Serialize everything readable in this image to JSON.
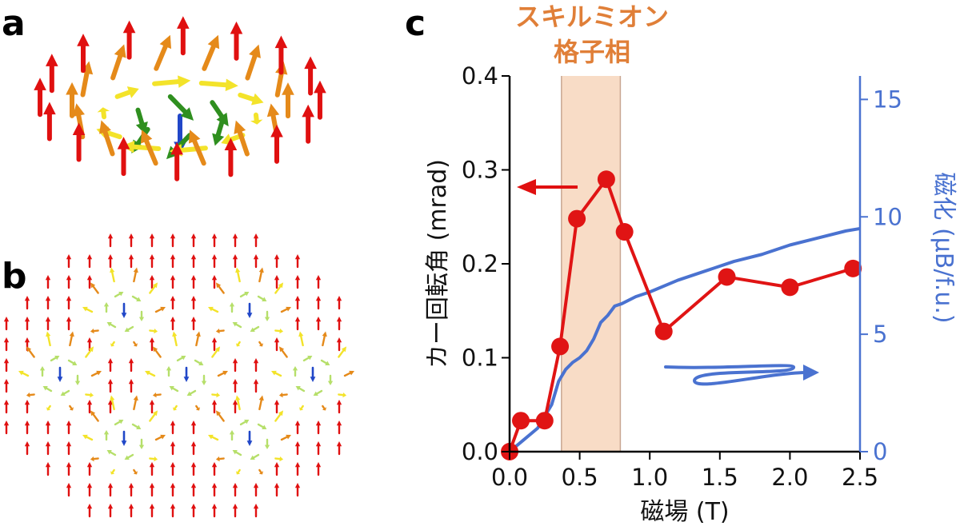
{
  "panels": {
    "a": {
      "label": "a"
    },
    "b": {
      "label": "b"
    },
    "c": {
      "label": "c"
    }
  },
  "phase_annotation": {
    "line1": "スキルミオン",
    "line2": "格子相",
    "range": [
      0.37,
      0.79
    ],
    "fill_color": "#f8dcc6"
  },
  "colors": {
    "kerr": "#e01414",
    "magnetization": "#4a72d0",
    "arrow_red": "#e01010",
    "arrow_orange": "#e58a1a",
    "arrow_yellow": "#f3e32a",
    "arrow_green": "#2f8f1f",
    "arrow_lightgreen": "#b6df6a",
    "arrow_blue": "#2147c8"
  },
  "chart_data": {
    "type": "line",
    "xlabel": "磁場 (T)",
    "ylabel_left": "カー回転角 (mrad)",
    "ylabel_right": "磁化 (μB/f.u.)",
    "xlim": [
      0,
      2.5
    ],
    "ylim_left": [
      0,
      0.4
    ],
    "ylim_right": [
      0,
      16
    ],
    "x_ticks": [
      "0.0",
      "0.5",
      "1.0",
      "1.5",
      "2.0",
      "2.5"
    ],
    "y_ticks_left": [
      "0.0",
      "0.1",
      "0.2",
      "0.3",
      "0.4"
    ],
    "y_ticks_right": [
      "0",
      "5",
      "10",
      "15"
    ],
    "zero_line": "dashed",
    "series": [
      {
        "axis": "left",
        "marker": "circle",
        "color": "#e01414",
        "x": [
          0.0,
          0.08,
          0.25,
          0.36,
          0.48,
          0.69,
          0.82,
          1.1,
          1.55,
          2.0,
          2.45
        ],
        "y": [
          0.0,
          0.033,
          0.033,
          0.112,
          0.248,
          0.29,
          0.234,
          0.128,
          0.186,
          0.175,
          0.195
        ]
      },
      {
        "axis": "right",
        "marker": "none",
        "color": "#4a72d0",
        "x": [
          0.0,
          0.1,
          0.2,
          0.3,
          0.35,
          0.4,
          0.45,
          0.5,
          0.55,
          0.6,
          0.65,
          0.7,
          0.75,
          0.8,
          0.9,
          1.0,
          1.2,
          1.4,
          1.6,
          1.8,
          2.0,
          2.2,
          2.4,
          2.5
        ],
        "y": [
          0.0,
          0.5,
          1.0,
          2.0,
          3.0,
          3.5,
          3.8,
          4.0,
          4.3,
          4.8,
          5.5,
          5.8,
          6.2,
          6.3,
          6.6,
          6.8,
          7.3,
          7.7,
          8.1,
          8.4,
          8.8,
          9.1,
          9.4,
          9.5
        ]
      }
    ],
    "annotations": [
      {
        "type": "arrow",
        "points_to": "left-axis",
        "color": "#e01414"
      },
      {
        "type": "arrow",
        "points_to": "right-axis",
        "color": "#4a72d0"
      }
    ]
  }
}
